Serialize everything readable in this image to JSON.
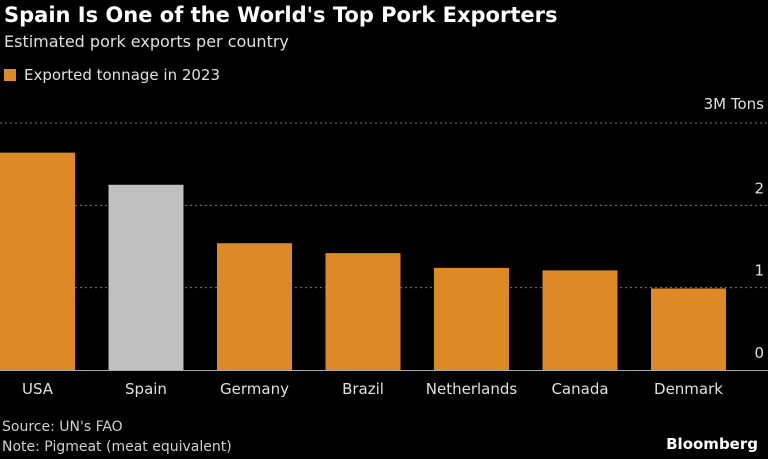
{
  "chart_data": {
    "type": "bar",
    "title": "Spain Is One of the World's Top Pork Exporters",
    "subtitle": "Estimated pork exports per country",
    "legend": [
      {
        "name": "Exported tonnage in 2023",
        "color": "#dd8a26"
      }
    ],
    "legend_placement": "top-left",
    "categories": [
      "USA",
      "Spain",
      "Germany",
      "Brazil",
      "Netherlands",
      "Canada",
      "Denmark"
    ],
    "series": [
      {
        "name": "Exported tonnage in 2023",
        "values": [
          2.64,
          2.25,
          1.54,
          1.42,
          1.24,
          1.21,
          0.99
        ]
      }
    ],
    "highlight": {
      "category": "Spain",
      "color": "#c0c0c0"
    },
    "ylabel": "",
    "yunit": "M Tons",
    "yticks": [
      {
        "value": 0,
        "label": "0"
      },
      {
        "value": 1,
        "label": "1"
      },
      {
        "value": 2,
        "label": "2"
      },
      {
        "value": 3,
        "label": "3M Tons"
      }
    ],
    "ylim": [
      0,
      3
    ],
    "grid": true,
    "bar_color": "#dd8a26"
  },
  "footer": {
    "source": "Source: UN's FAO",
    "note": "Note: Pigmeat (meat equivalent)",
    "brand": "Bloomberg"
  }
}
